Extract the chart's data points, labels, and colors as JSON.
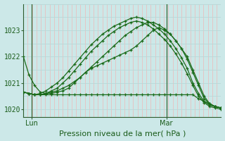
{
  "bg_color": "#cce8e8",
  "grid_color_v": "#e8c0c0",
  "grid_color_h": "#b8d8d8",
  "line_color": "#1a6b1a",
  "title": "Pression niveau de la mer( hPa )",
  "title_fontsize": 8,
  "xlabel_lun": "Lun",
  "xlabel_mar": "Mar",
  "yticks": [
    1020,
    1021,
    1022,
    1023
  ],
  "ylim": [
    1019.7,
    1024.0
  ],
  "xlim": [
    0,
    47
  ],
  "lun_x": 2,
  "mar_x": 34,
  "n_vgrid": 46,
  "series": [
    [
      1022.0,
      1021.3,
      1020.9,
      1020.65,
      1020.6,
      1020.6,
      1020.65,
      1020.7,
      1020.8,
      1021.0,
      1021.2,
      1021.4,
      1021.55,
      1021.65,
      1021.75,
      1021.85,
      1021.95,
      1022.05,
      1022.15,
      1022.25,
      1022.4,
      1022.6,
      1022.8,
      1023.0,
      1023.1,
      1023.0,
      1022.85,
      1022.6,
      1022.3,
      1022.0,
      1021.5,
      1021.0,
      1020.5,
      1020.2,
      1020.1,
      1020.05
    ],
    [
      1020.65,
      1020.6,
      1020.55,
      1020.55,
      1020.55,
      1020.55,
      1020.55,
      1020.55,
      1020.55,
      1020.55,
      1020.55,
      1020.55,
      1020.55,
      1020.55,
      1020.55,
      1020.55,
      1020.55,
      1020.55,
      1020.55,
      1020.55,
      1020.55,
      1020.55,
      1020.55,
      1020.55,
      1020.55,
      1020.55,
      1020.55,
      1020.55,
      1020.55,
      1020.55,
      1020.55,
      1020.4,
      1020.3,
      1020.2,
      1020.1,
      1020.05
    ],
    [
      1020.65,
      1020.6,
      1020.55,
      1020.55,
      1020.6,
      1020.65,
      1020.7,
      1020.8,
      1020.9,
      1021.05,
      1021.2,
      1021.4,
      1021.6,
      1021.8,
      1022.0,
      1022.2,
      1022.4,
      1022.6,
      1022.8,
      1022.95,
      1023.1,
      1023.2,
      1023.3,
      1023.3,
      1023.2,
      1023.05,
      1022.85,
      1022.6,
      1022.3,
      1021.9,
      1021.4,
      1020.9,
      1020.4,
      1020.2,
      1020.1,
      1020.05
    ],
    [
      1020.65,
      1020.6,
      1020.55,
      1020.6,
      1020.7,
      1020.85,
      1021.0,
      1021.2,
      1021.45,
      1021.7,
      1021.95,
      1022.2,
      1022.45,
      1022.65,
      1022.85,
      1023.0,
      1023.15,
      1023.25,
      1023.35,
      1023.45,
      1023.5,
      1023.45,
      1023.35,
      1023.2,
      1023.05,
      1022.85,
      1022.6,
      1022.3,
      1021.95,
      1021.55,
      1021.0,
      1020.6,
      1020.3,
      1020.15,
      1020.1,
      1020.05
    ],
    [
      1020.65,
      1020.6,
      1020.55,
      1020.55,
      1020.6,
      1020.7,
      1020.8,
      1021.0,
      1021.2,
      1021.45,
      1021.7,
      1021.95,
      1022.2,
      1022.4,
      1022.6,
      1022.8,
      1022.95,
      1023.1,
      1023.2,
      1023.3,
      1023.35,
      1023.3,
      1023.2,
      1023.05,
      1022.85,
      1022.65,
      1022.4,
      1022.1,
      1021.75,
      1021.35,
      1020.9,
      1020.5,
      1020.25,
      1020.1,
      1020.05,
      1020.0
    ]
  ]
}
